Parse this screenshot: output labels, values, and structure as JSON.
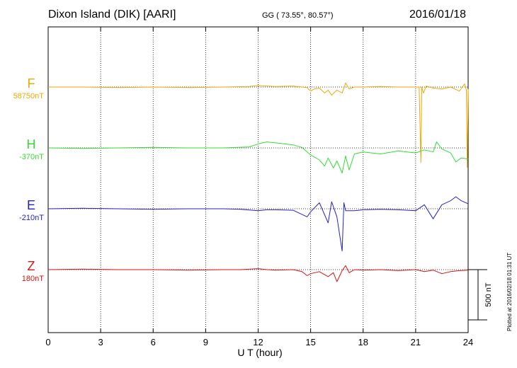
{
  "header": {
    "station": "Dixon Island (DIK)  [AARI]",
    "coords": "GG ( 73.55°,  80.57°)",
    "date": "2016/01/18"
  },
  "side_note": "Plotted at 2016/02/18 01:31  UT",
  "chart_data": {
    "type": "line",
    "xlabel": "U T (hour)",
    "xlim": [
      0,
      24
    ],
    "xticks": [
      0,
      3,
      6,
      9,
      12,
      15,
      18,
      21,
      24
    ],
    "grid": true,
    "scale_bar_label": "500 nT",
    "scale_bar_nT": 500,
    "series": [
      {
        "name": "F",
        "baseline_label": "58750nT",
        "color": "#f0a800",
        "x": [
          0,
          2,
          4,
          6,
          8,
          10,
          11.5,
          12,
          12.5,
          13,
          14,
          14.8,
          15,
          15.2,
          15.5,
          15.8,
          16,
          16.2,
          16.5,
          16.8,
          17,
          17.2,
          17.5,
          18,
          19,
          20,
          21,
          21.2,
          21.3,
          21.35,
          21.45,
          21.6,
          22,
          22.5,
          23,
          23.5,
          23.8,
          23.9,
          23.95,
          24
        ],
        "y": [
          0,
          0,
          -5,
          0,
          -5,
          0,
          5,
          15,
          10,
          5,
          10,
          -5,
          -40,
          -20,
          -10,
          -60,
          -30,
          -80,
          -30,
          -60,
          40,
          -20,
          0,
          0,
          5,
          0,
          0,
          0,
          -750,
          0,
          -60,
          10,
          -10,
          -20,
          0,
          -40,
          30,
          -30,
          -800,
          -20
        ]
      },
      {
        "name": "H",
        "baseline_label": "-370nT",
        "color": "#33dd33",
        "x": [
          0,
          2,
          4,
          6,
          8,
          10,
          11.5,
          12,
          12.5,
          13,
          14,
          14.5,
          15,
          15.5,
          15.8,
          16,
          16.3,
          16.5,
          16.8,
          17,
          17.2,
          17.5,
          18,
          19,
          20,
          21,
          21.5,
          22,
          22.2,
          22.5,
          23,
          23.3,
          23.6,
          24
        ],
        "y": [
          0,
          -5,
          0,
          5,
          0,
          0,
          10,
          40,
          60,
          50,
          30,
          5,
          -70,
          -120,
          -180,
          -100,
          -200,
          -130,
          -250,
          -80,
          -220,
          -60,
          -40,
          -60,
          -30,
          -50,
          -20,
          -40,
          60,
          -10,
          -50,
          -140,
          -100,
          -110
        ]
      },
      {
        "name": "E",
        "baseline_label": "-210nT",
        "color": "#2222cc",
        "x": [
          0,
          2,
          4,
          6,
          8,
          10,
          11,
          12,
          12.5,
          13,
          14,
          14.8,
          15,
          15.5,
          16,
          16.2,
          16.5,
          16.8,
          16.9,
          17,
          17.5,
          18,
          19,
          20,
          21,
          21.5,
          22,
          22.5,
          23,
          23.3,
          23.6,
          24
        ],
        "y": [
          0,
          5,
          0,
          -5,
          0,
          0,
          -5,
          -20,
          -10,
          -10,
          -15,
          -80,
          -30,
          60,
          -140,
          70,
          -80,
          -420,
          60,
          -20,
          -20,
          -10,
          -5,
          -10,
          -20,
          40,
          -100,
          40,
          80,
          120,
          80,
          50
        ]
      },
      {
        "name": "Z",
        "baseline_label": "180nT",
        "color": "#dd1111",
        "x": [
          0,
          2,
          4,
          6,
          8,
          10,
          11,
          12,
          12.5,
          13,
          14,
          14.5,
          14.8,
          15,
          15.5,
          16,
          16.3,
          16.5,
          16.8,
          17,
          17.2,
          17.5,
          18,
          19,
          20,
          21,
          21.5,
          22,
          22.5,
          23,
          23.5,
          24
        ],
        "y": [
          0,
          5,
          0,
          0,
          -5,
          0,
          0,
          10,
          0,
          -5,
          0,
          -20,
          -60,
          -40,
          -20,
          -70,
          -30,
          -120,
          -10,
          40,
          -30,
          0,
          -5,
          0,
          -10,
          0,
          -20,
          -5,
          -40,
          -20,
          -10,
          -5
        ]
      }
    ]
  }
}
